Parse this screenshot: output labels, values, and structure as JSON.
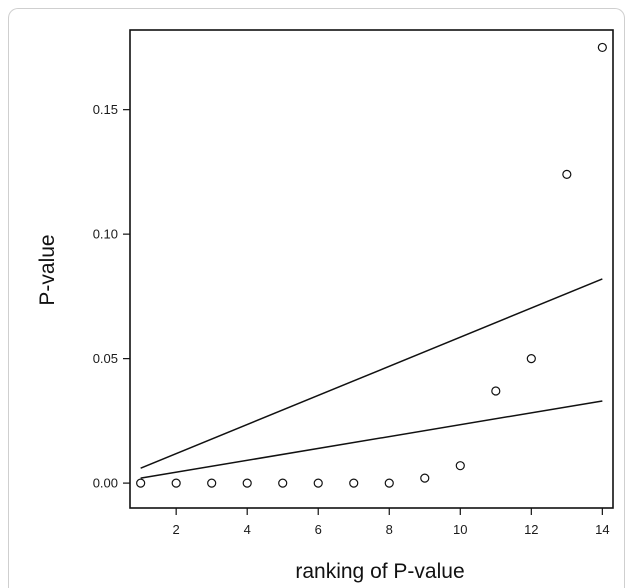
{
  "chart_data": {
    "type": "scatter",
    "title": "",
    "xlabel": "ranking of P-value",
    "ylabel": "P-value",
    "xlim": [
      0.7,
      14.3
    ],
    "ylim": [
      -0.01,
      0.182
    ],
    "x_ticks": [
      2,
      4,
      6,
      8,
      10,
      12,
      14
    ],
    "y_ticks": [
      0.0,
      0.05,
      0.1,
      0.15
    ],
    "x_tick_labels": [
      "2",
      "4",
      "6",
      "8",
      "10",
      "12",
      "14"
    ],
    "y_tick_labels": [
      "0.00",
      "0.05",
      "0.10",
      "0.15"
    ],
    "grid": false,
    "series": [
      {
        "kind": "points",
        "marker": "open-circle",
        "x": [
          1,
          2,
          3,
          4,
          5,
          6,
          7,
          8,
          9,
          10,
          11,
          12,
          13,
          14
        ],
        "y": [
          0.0,
          0.0,
          0.0,
          0.0,
          0.0,
          0.0,
          0.0,
          0.0,
          0.002,
          0.007,
          0.037,
          0.05,
          0.124,
          0.175
        ]
      },
      {
        "kind": "line",
        "x": [
          1,
          14
        ],
        "y": [
          0.006,
          0.082
        ]
      },
      {
        "kind": "line",
        "x": [
          1,
          14
        ],
        "y": [
          0.002,
          0.033
        ]
      }
    ]
  }
}
